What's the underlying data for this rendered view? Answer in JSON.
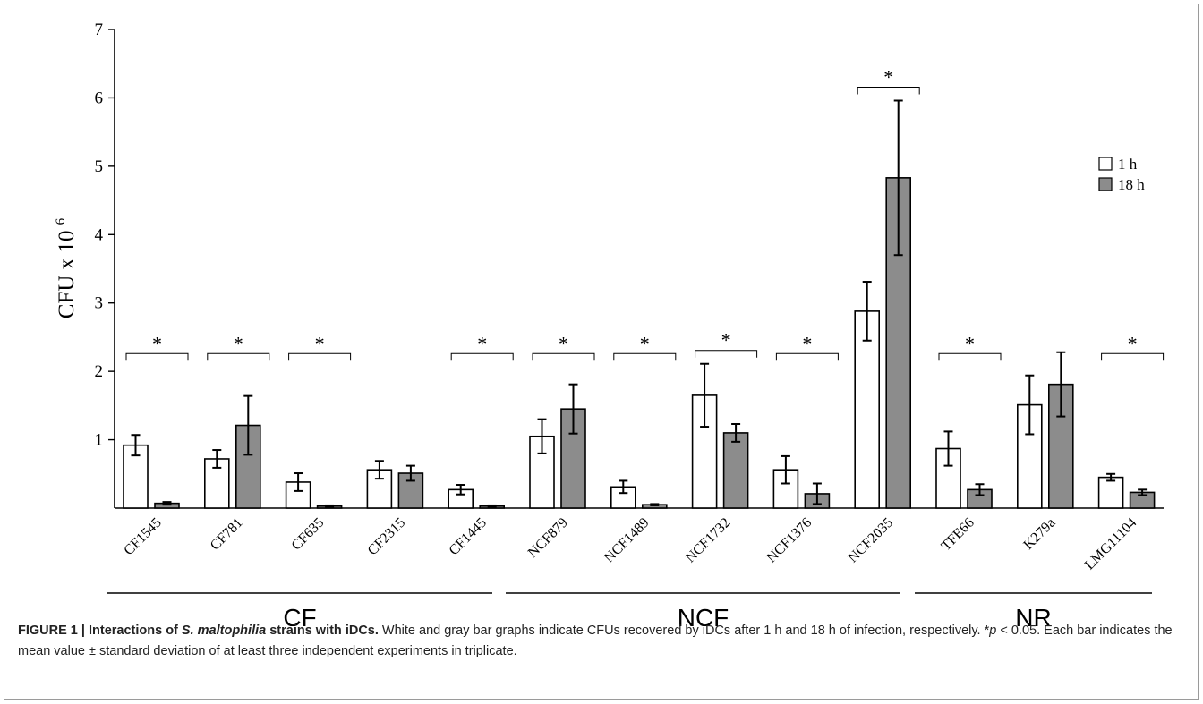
{
  "chart_data": {
    "type": "bar",
    "ylabel": "CFU x 10",
    "ylabel_exp": "6",
    "ylim": [
      0,
      7
    ],
    "yticks": [
      1,
      2,
      3,
      4,
      5,
      6,
      7
    ],
    "categories": [
      "CF1545",
      "CF781",
      "CF635",
      "CF2315",
      "CF1445",
      "NCF879",
      "NCF1489",
      "NCF1732",
      "NCF1376",
      "NCF2035",
      "TFE66",
      "K279a",
      "LMG11104"
    ],
    "series": [
      {
        "name": "1 h",
        "color": "#ffffff",
        "values": [
          0.92,
          0.72,
          0.38,
          0.56,
          0.27,
          1.05,
          0.31,
          1.65,
          0.56,
          2.88,
          0.87,
          1.51,
          0.45
        ],
        "errors": [
          0.15,
          0.13,
          0.13,
          0.13,
          0.07,
          0.25,
          0.09,
          0.46,
          0.2,
          0.43,
          0.25,
          0.43,
          0.05
        ]
      },
      {
        "name": "18 h",
        "color": "#8c8c8c",
        "values": [
          0.07,
          1.21,
          0.03,
          0.51,
          0.03,
          1.45,
          0.05,
          1.1,
          0.21,
          4.83,
          0.27,
          1.81,
          0.23
        ],
        "errors": [
          0.02,
          0.43,
          0.01,
          0.11,
          0.01,
          0.36,
          0.01,
          0.13,
          0.15,
          1.13,
          0.08,
          0.47,
          0.04
        ]
      }
    ],
    "significance": [
      true,
      true,
      true,
      false,
      true,
      true,
      true,
      true,
      true,
      true,
      true,
      false,
      true
    ],
    "significance_mark": "*",
    "groups": [
      {
        "label": "CF",
        "from": 0,
        "to": 4
      },
      {
        "label": "NCF",
        "from": 5,
        "to": 9
      },
      {
        "label": "NR",
        "from": 10,
        "to": 12
      }
    ],
    "legend_position": "top-right",
    "grid": false
  },
  "caption": {
    "lead_a": "FIGURE 1 | Interactions of ",
    "lead_species": "S. maltophilia",
    "lead_b": " strains with iDCs.",
    "body_a": " White and gray bar graphs indicate CFUs recovered by iDCs after 1 h and 18 h of infection, respectively. *",
    "p_italic": "p",
    "body_b": " < 0.05. Each bar indicates the mean value ± standard deviation of at least three independent experiments in triplicate."
  }
}
